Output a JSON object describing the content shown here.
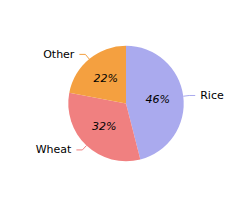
{
  "chart_data": {
    "type": "pie",
    "categories": [
      "Rice",
      "Wheat",
      "Other"
    ],
    "values": [
      46,
      32,
      22
    ],
    "value_labels": [
      "46%",
      "32%",
      "22%"
    ],
    "data_labels": true,
    "colors": [
      "#aaaaee",
      "#f08080",
      "#f4a040"
    ]
  }
}
